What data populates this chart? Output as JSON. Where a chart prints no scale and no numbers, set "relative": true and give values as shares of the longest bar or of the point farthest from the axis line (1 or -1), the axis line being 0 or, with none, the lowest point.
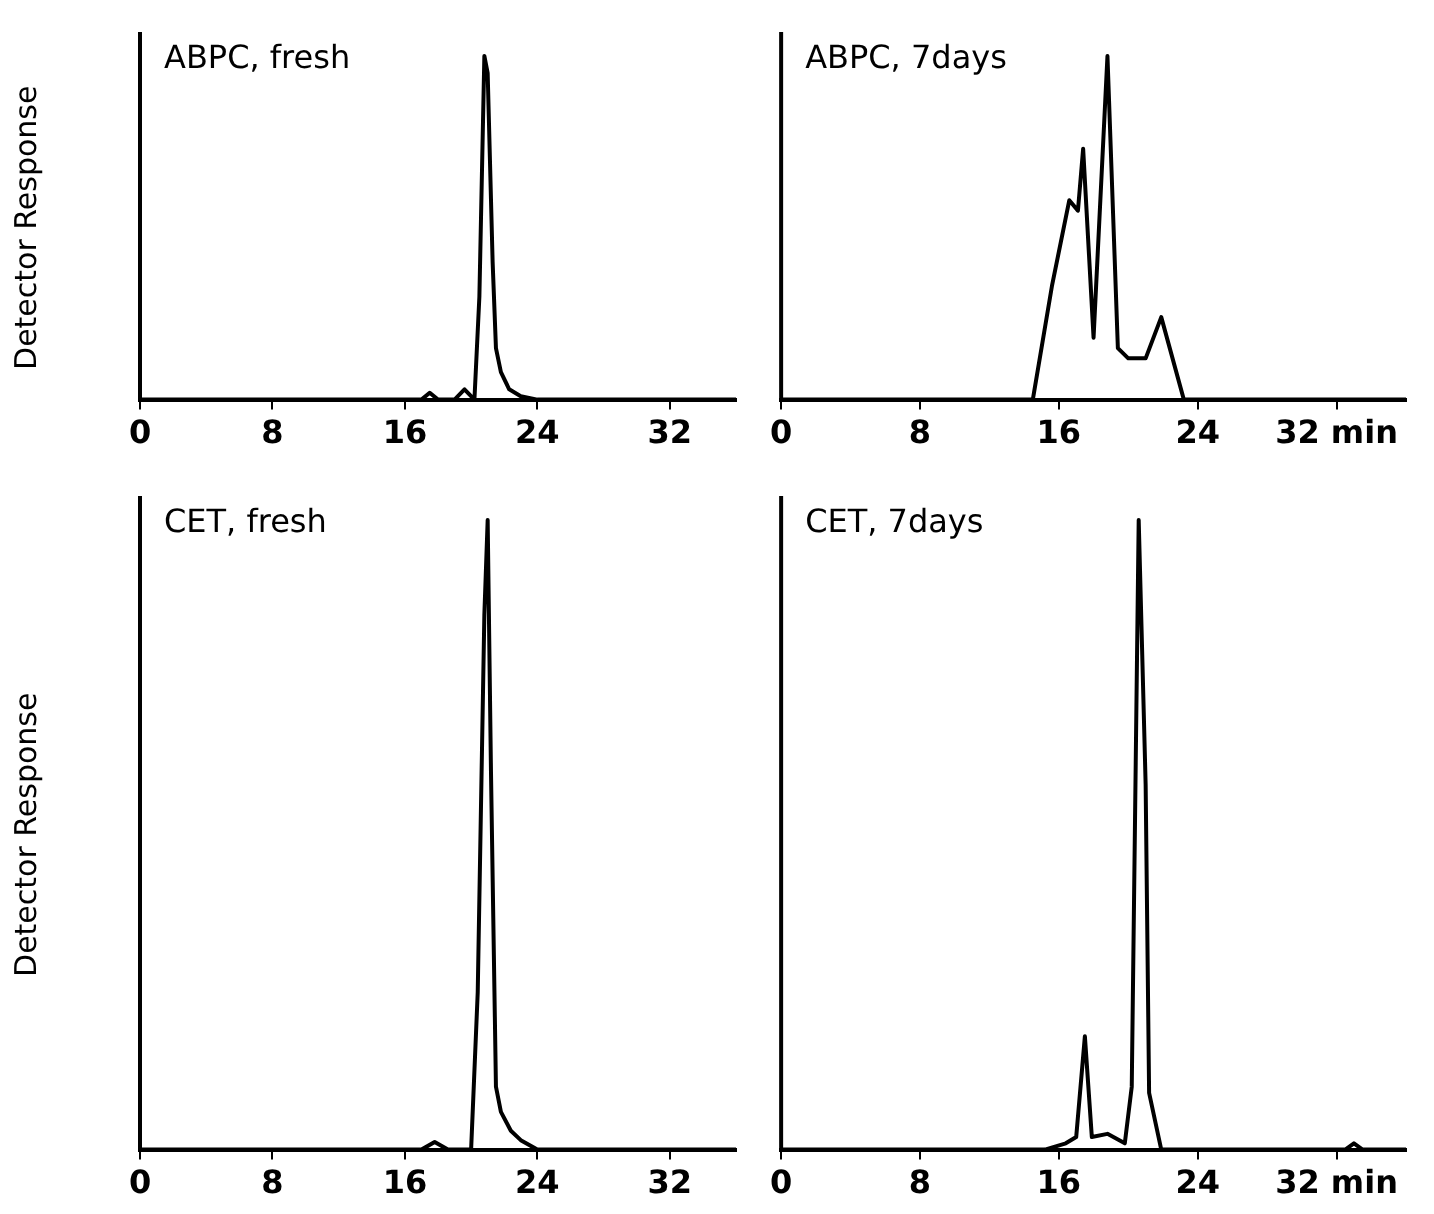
{
  "chart_data": [
    {
      "type": "line",
      "title": "ABPC, fresh",
      "ylabel": "Detector Response",
      "relative": true,
      "color": "#000000",
      "xlim": [
        0,
        36
      ],
      "xticks": [
        0,
        8,
        16,
        24,
        32
      ],
      "x": [
        0,
        8,
        16,
        17,
        17.5,
        18,
        19,
        19.6,
        20.2,
        20.5,
        20.8,
        21.0,
        21.3,
        21.5,
        21.8,
        22.3,
        23,
        24,
        36
      ],
      "values": [
        0,
        0,
        0,
        0,
        0.02,
        0,
        0,
        0.03,
        0,
        0.3,
        1,
        0.95,
        0.4,
        0.15,
        0.08,
        0.03,
        0.01,
        0,
        0
      ]
    },
    {
      "type": "line",
      "title": "ABPC, 7days",
      "relative": true,
      "color": "#000000",
      "xlim": [
        0,
        36
      ],
      "xticks": [
        0,
        8,
        16,
        24,
        {
          "value": 32,
          "label": "32 min"
        }
      ],
      "x": [
        0,
        8,
        14.5,
        15.6,
        16.6,
        17.1,
        17.4,
        18.0,
        18.8,
        19.4,
        20.0,
        21.0,
        21.9,
        23.2,
        36
      ],
      "values": [
        0,
        0,
        0,
        0.33,
        0.58,
        0.55,
        0.73,
        0.18,
        1,
        0.15,
        0.12,
        0.12,
        0.24,
        0,
        0
      ]
    },
    {
      "type": "line",
      "title": "CET, fresh",
      "ylabel": "Detector Response",
      "relative": true,
      "color": "#000000",
      "xlim": [
        0,
        36
      ],
      "xticks": [
        0,
        8,
        16,
        24,
        32
      ],
      "x": [
        0,
        8,
        16,
        17,
        17.8,
        18.6,
        20.0,
        20.4,
        20.8,
        21.0,
        21.2,
        21.5,
        21.8,
        22.4,
        23,
        24,
        36
      ],
      "values": [
        0,
        0,
        0,
        0,
        0.012,
        0,
        0,
        0.25,
        0.85,
        1,
        0.6,
        0.1,
        0.06,
        0.03,
        0.015,
        0,
        0
      ]
    },
    {
      "type": "line",
      "title": "CET, 7days",
      "relative": true,
      "color": "#000000",
      "xlim": [
        0,
        36
      ],
      "xticks": [
        0,
        8,
        16,
        24,
        {
          "value": 32,
          "label": "32 min"
        }
      ],
      "x": [
        0,
        8,
        15.2,
        16.4,
        17.0,
        17.5,
        17.9,
        18.8,
        19.8,
        20.2,
        20.6,
        21.0,
        21.2,
        21.9,
        32.5,
        33.0,
        33.5,
        36
      ],
      "values": [
        0,
        0,
        0,
        0.01,
        0.02,
        0.18,
        0.02,
        0.025,
        0.01,
        0.1,
        1,
        0.58,
        0.09,
        0,
        0,
        0.01,
        0,
        0
      ]
    }
  ]
}
